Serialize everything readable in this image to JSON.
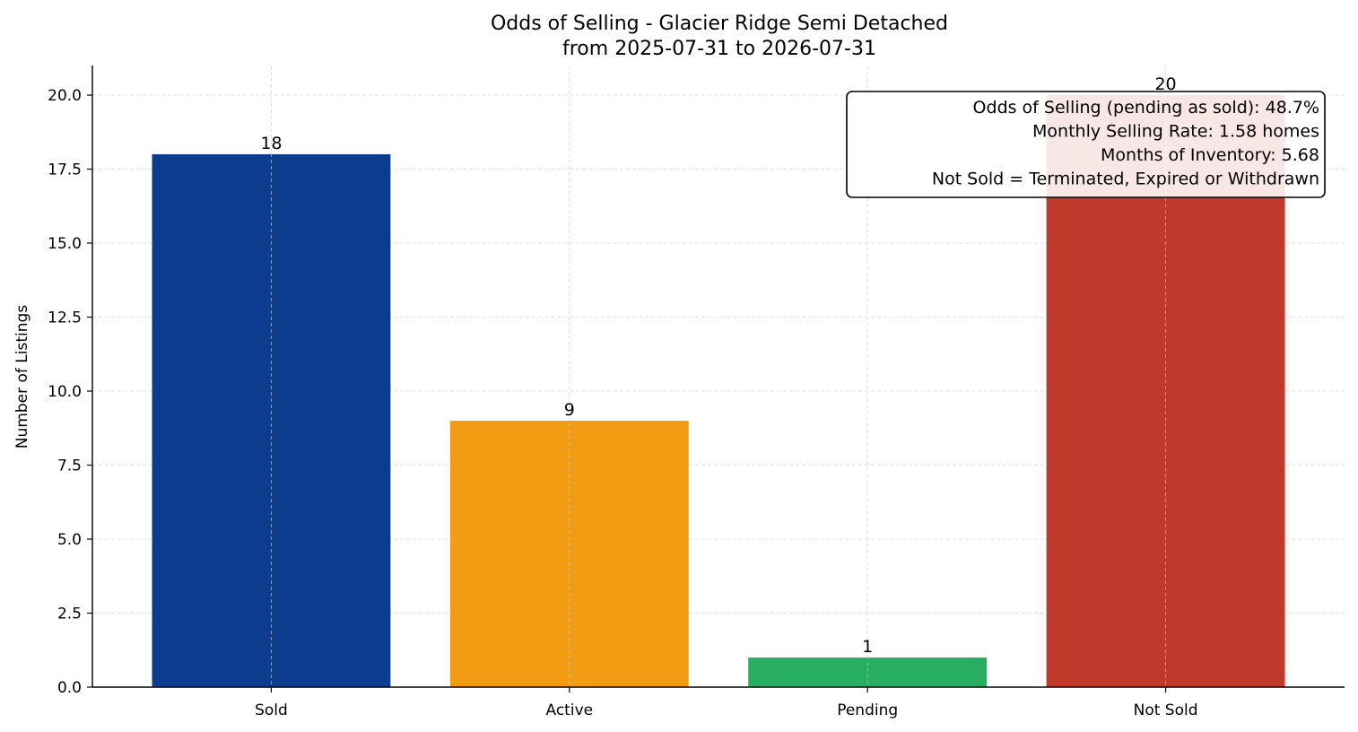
{
  "chart_data": {
    "type": "bar",
    "title": "Odds of Selling - Glacier Ridge Semi Detached",
    "subtitle": "from 2025-07-31 to 2026-07-31",
    "xlabel": "",
    "ylabel": "Number of Listings",
    "categories": [
      "Sold",
      "Active",
      "Pending",
      "Not Sold"
    ],
    "values": [
      18,
      9,
      1,
      20
    ],
    "colors": [
      "#0b3c8e",
      "#f29c14",
      "#27ae60",
      "#c0392b"
    ],
    "ylim": [
      0,
      21
    ],
    "yticks": [
      0,
      2.5,
      5,
      7.5,
      10,
      12.5,
      15,
      17.5,
      20
    ],
    "ytick_labels": [
      "0.0",
      "2.5",
      "5.0",
      "7.5",
      "10.0",
      "12.5",
      "15.0",
      "17.5",
      "20.0"
    ],
    "grid": true,
    "annotation_box": {
      "placement": "top-right",
      "lines": [
        "Odds of Selling (pending as sold): 48.7%",
        "Monthly Selling Rate: 1.58 homes",
        "Months of Inventory: 5.68",
        "Not Sold = Terminated, Expired or Withdrawn"
      ]
    }
  }
}
